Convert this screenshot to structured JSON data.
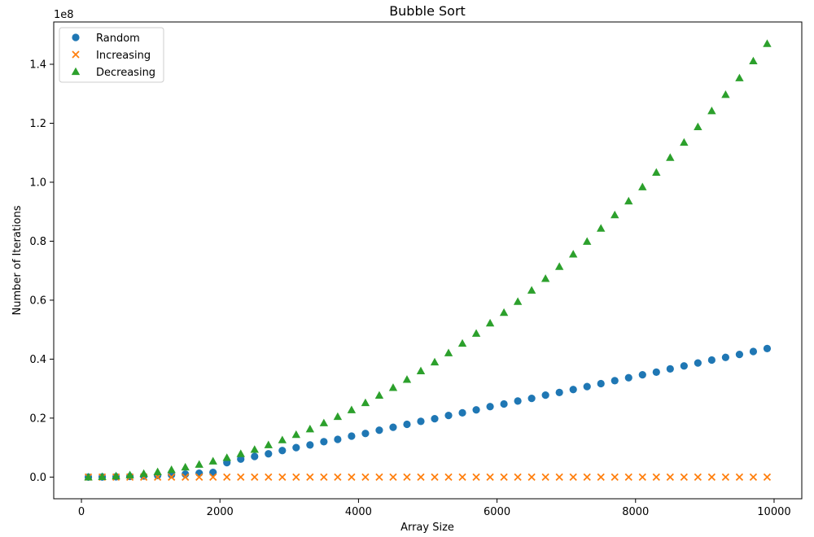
{
  "chart_data": {
    "type": "scatter",
    "title": "Bubble Sort",
    "xlabel": "Array Size",
    "ylabel": "Number of Iterations",
    "y_offset_label": "1e8",
    "xlim": [
      -400,
      10400
    ],
    "ylim": [
      -7350000,
      154350000
    ],
    "x_ticks": [
      0,
      2000,
      4000,
      6000,
      8000,
      10000
    ],
    "x_tick_labels": [
      "0",
      "2000",
      "4000",
      "6000",
      "8000",
      "10000"
    ],
    "y_ticks": [
      0,
      20000000,
      40000000,
      60000000,
      80000000,
      100000000,
      120000000,
      140000000
    ],
    "y_tick_labels": [
      "0.0",
      "0.2",
      "0.4",
      "0.6",
      "0.8",
      "1.0",
      "1.2",
      "1.4"
    ],
    "grid": false,
    "legend_position": "top-left",
    "x": [
      100,
      300,
      500,
      700,
      900,
      1100,
      1300,
      1500,
      1700,
      1900,
      2100,
      2300,
      2500,
      2700,
      2900,
      3100,
      3300,
      3500,
      3700,
      3900,
      4100,
      4300,
      4500,
      4700,
      4900,
      5100,
      5300,
      5500,
      5700,
      5900,
      6100,
      6300,
      6500,
      6700,
      6900,
      7100,
      7300,
      7500,
      7700,
      7900,
      8100,
      8300,
      8500,
      8700,
      8900,
      9100,
      9300,
      9500,
      9700,
      9900
    ],
    "series": [
      {
        "name": "Random",
        "marker": "circle",
        "color": "#1f77b4",
        "values": [
          4455,
          40000,
          112000,
          220000,
          360000,
          540000,
          750000,
          1000000,
          1300000,
          1600000,
          4900000,
          6100000,
          7000000,
          7900000,
          9000000,
          10000000,
          10900000,
          12000000,
          12800000,
          13900000,
          14800000,
          15900000,
          16900000,
          17900000,
          18900000,
          19800000,
          20900000,
          21800000,
          22800000,
          23900000,
          24800000,
          25800000,
          26700000,
          27800000,
          28700000,
          29700000,
          30700000,
          31700000,
          32700000,
          33700000,
          34700000,
          35600000,
          36700000,
          37700000,
          38700000,
          39700000,
          40600000,
          41600000,
          42600000,
          43600000
        ]
      },
      {
        "name": "Increasing",
        "marker": "x",
        "color": "#ff7f0e",
        "values": [
          0,
          0,
          0,
          0,
          0,
          0,
          0,
          0,
          0,
          0,
          0,
          0,
          0,
          0,
          0,
          0,
          0,
          0,
          0,
          0,
          0,
          0,
          0,
          0,
          0,
          0,
          0,
          0,
          0,
          0,
          0,
          0,
          0,
          0,
          0,
          0,
          0,
          0,
          0,
          0,
          0,
          0,
          0,
          0,
          0,
          0,
          0,
          0,
          0,
          0
        ]
      },
      {
        "name": "Decreasing",
        "marker": "triangle",
        "color": "#2ca02c",
        "values": [
          15000,
          135000,
          375000,
          735000,
          1215000,
          1815000,
          2535000,
          3375000,
          4335000,
          5415000,
          6615000,
          7935000,
          9375000,
          10935000,
          12615000,
          14415000,
          16335000,
          18375000,
          20535000,
          22815000,
          25215000,
          27735000,
          30375000,
          33135000,
          36015000,
          39015000,
          42135000,
          45375000,
          48735000,
          52215000,
          55815000,
          59535000,
          63375000,
          67335000,
          71415000,
          75615000,
          79935000,
          84375000,
          88935000,
          93615000,
          98415000,
          103335000,
          108375000,
          113535000,
          118815000,
          124215000,
          129735000,
          135375000,
          141135000,
          147015000
        ]
      }
    ]
  }
}
